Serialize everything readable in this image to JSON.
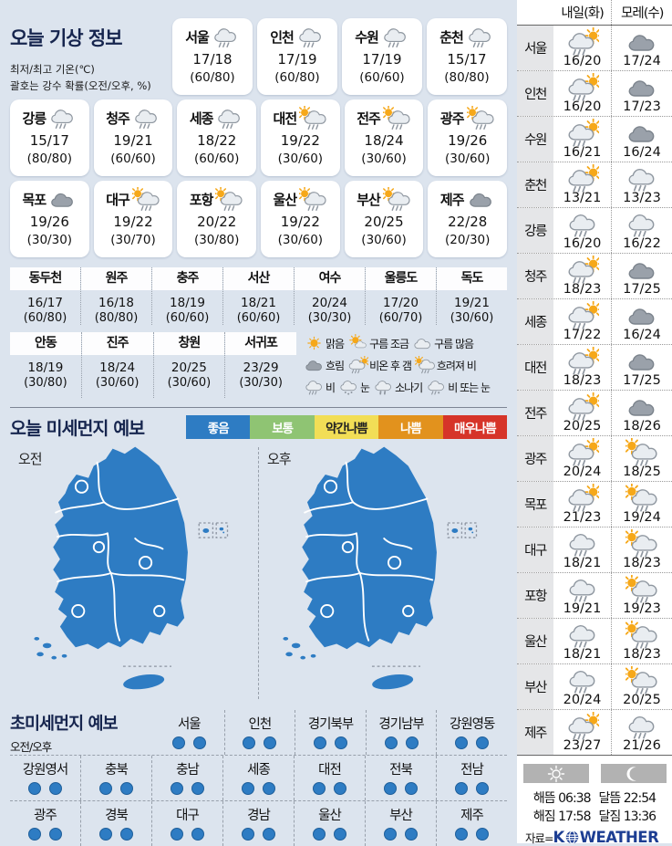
{
  "today": {
    "title": "오늘 기상 정보",
    "subtitle1": "최저/최고 기온(℃)",
    "subtitle2": "괄호는 강수 확률(오전/오후, %)",
    "cards_row1": [
      {
        "name": "서울",
        "icon": "rain",
        "temp": "17/18",
        "prob": "(60/80)"
      },
      {
        "name": "인천",
        "icon": "rain",
        "temp": "17/19",
        "prob": "(60/80)"
      },
      {
        "name": "수원",
        "icon": "rain",
        "temp": "17/19",
        "prob": "(60/60)"
      },
      {
        "name": "춘천",
        "icon": "rain",
        "temp": "15/17",
        "prob": "(80/80)"
      }
    ],
    "cards_row2": [
      {
        "name": "강릉",
        "icon": "rain",
        "temp": "15/17",
        "prob": "(80/80)"
      },
      {
        "name": "청주",
        "icon": "rain",
        "temp": "19/21",
        "prob": "(60/60)"
      },
      {
        "name": "세종",
        "icon": "rain",
        "temp": "18/22",
        "prob": "(60/60)"
      },
      {
        "name": "대전",
        "icon": "sun-rain",
        "temp": "19/22",
        "prob": "(30/60)"
      },
      {
        "name": "전주",
        "icon": "sun-rain",
        "temp": "18/24",
        "prob": "(30/60)"
      },
      {
        "name": "광주",
        "icon": "sun-rain",
        "temp": "19/26",
        "prob": "(30/60)"
      }
    ],
    "cards_row3": [
      {
        "name": "목포",
        "icon": "cloud-dark",
        "temp": "19/26",
        "prob": "(30/30)"
      },
      {
        "name": "대구",
        "icon": "sun-rain",
        "temp": "19/22",
        "prob": "(30/70)"
      },
      {
        "name": "포항",
        "icon": "sun-rain",
        "temp": "20/22",
        "prob": "(30/80)"
      },
      {
        "name": "울산",
        "icon": "sun-rain",
        "temp": "19/22",
        "prob": "(30/60)"
      },
      {
        "name": "부산",
        "icon": "sun-rain",
        "temp": "20/25",
        "prob": "(30/60)"
      },
      {
        "name": "제주",
        "icon": "cloud-dark",
        "temp": "22/28",
        "prob": "(20/30)"
      }
    ],
    "table_row1": [
      {
        "name": "동두천",
        "temp": "16/17",
        "prob": "(60/80)"
      },
      {
        "name": "원주",
        "temp": "16/18",
        "prob": "(80/80)"
      },
      {
        "name": "충주",
        "temp": "18/19",
        "prob": "(60/60)"
      },
      {
        "name": "서산",
        "temp": "18/21",
        "prob": "(60/60)"
      },
      {
        "name": "여수",
        "temp": "20/24",
        "prob": "(30/30)"
      },
      {
        "name": "울릉도",
        "temp": "17/20",
        "prob": "(60/70)"
      },
      {
        "name": "독도",
        "temp": "19/21",
        "prob": "(30/60)"
      }
    ],
    "table_row2": [
      {
        "name": "안동",
        "temp": "18/19",
        "prob": "(30/80)"
      },
      {
        "name": "진주",
        "temp": "18/24",
        "prob": "(30/60)"
      },
      {
        "name": "창원",
        "temp": "20/25",
        "prob": "(30/60)"
      },
      {
        "name": "서귀포",
        "temp": "23/29",
        "prob": "(30/30)"
      }
    ],
    "legend_rows": [
      [
        {
          "icon": "sun",
          "label": "맑음"
        },
        {
          "icon": "part-sun",
          "label": "구름 조금"
        },
        {
          "icon": "cloud",
          "label": "구름 많음"
        }
      ],
      [
        {
          "icon": "cloud-dark",
          "label": "흐림"
        },
        {
          "icon": "rain-sun",
          "label": "비온 후 갬"
        },
        {
          "icon": "sun-rain",
          "label": "흐려져 비"
        }
      ],
      [
        {
          "icon": "rain",
          "label": "비"
        },
        {
          "icon": "snow",
          "label": "눈"
        },
        {
          "icon": "shower",
          "label": "소나기"
        },
        {
          "icon": "rain-snow",
          "label": "비 또는 눈"
        }
      ]
    ]
  },
  "dust": {
    "title": "오늘 미세먼지 예보",
    "levels": [
      {
        "label": "좋음",
        "color": "#2e7cc3",
        "text": "#ffffff"
      },
      {
        "label": "보통",
        "color": "#8fc473",
        "text": "#ffffff"
      },
      {
        "label": "약간나쁨",
        "color": "#f2de56",
        "text": "#222222"
      },
      {
        "label": "나쁨",
        "color": "#e2921d",
        "text": "#ffffff"
      },
      {
        "label": "매우나쁨",
        "color": "#d63429",
        "text": "#ffffff"
      }
    ],
    "maps": [
      {
        "label": "오전"
      },
      {
        "label": "오후"
      }
    ],
    "map_color": "#2e7cc3"
  },
  "ultrafine": {
    "title": "초미세먼지 예보",
    "sublabel": "오전/오후",
    "row1": [
      "서울",
      "인천",
      "경기북부",
      "경기남부",
      "강원영동"
    ],
    "row2": [
      "강원영서",
      "충북",
      "충남",
      "세종",
      "대전",
      "전북",
      "전남"
    ],
    "row3": [
      "광주",
      "경북",
      "대구",
      "경남",
      "울산",
      "부산",
      "제주"
    ],
    "dot_color": "#2e7cc3",
    "dots_per_region": 2
  },
  "forecast": {
    "col1": "내일(화)",
    "col2": "모레(수)",
    "rows": [
      {
        "name": "서울",
        "d1": {
          "icon": "rain-sun",
          "temp": "16/20"
        },
        "d2": {
          "icon": "cloud-dark",
          "temp": "17/24"
        }
      },
      {
        "name": "인천",
        "d1": {
          "icon": "rain-sun",
          "temp": "16/20"
        },
        "d2": {
          "icon": "cloud-dark",
          "temp": "17/23"
        }
      },
      {
        "name": "수원",
        "d1": {
          "icon": "rain-sun",
          "temp": "16/21"
        },
        "d2": {
          "icon": "cloud-dark",
          "temp": "16/24"
        }
      },
      {
        "name": "춘천",
        "d1": {
          "icon": "rain-sun",
          "temp": "13/21"
        },
        "d2": {
          "icon": "rain",
          "temp": "13/23"
        }
      },
      {
        "name": "강릉",
        "d1": {
          "icon": "rain",
          "temp": "16/20"
        },
        "d2": {
          "icon": "rain",
          "temp": "16/22"
        }
      },
      {
        "name": "청주",
        "d1": {
          "icon": "rain-sun",
          "temp": "18/23"
        },
        "d2": {
          "icon": "cloud-dark",
          "temp": "17/25"
        }
      },
      {
        "name": "세종",
        "d1": {
          "icon": "rain-sun",
          "temp": "17/22"
        },
        "d2": {
          "icon": "cloud-dark",
          "temp": "16/24"
        }
      },
      {
        "name": "대전",
        "d1": {
          "icon": "rain-sun",
          "temp": "18/23"
        },
        "d2": {
          "icon": "cloud-dark",
          "temp": "17/25"
        }
      },
      {
        "name": "전주",
        "d1": {
          "icon": "rain-sun",
          "temp": "20/25"
        },
        "d2": {
          "icon": "cloud-dark",
          "temp": "18/26"
        }
      },
      {
        "name": "광주",
        "d1": {
          "icon": "rain-sun",
          "temp": "20/24"
        },
        "d2": {
          "icon": "sun-rain",
          "temp": "18/25"
        }
      },
      {
        "name": "목포",
        "d1": {
          "icon": "rain-sun",
          "temp": "21/23"
        },
        "d2": {
          "icon": "sun-rain",
          "temp": "19/24"
        }
      },
      {
        "name": "대구",
        "d1": {
          "icon": "rain",
          "temp": "18/21"
        },
        "d2": {
          "icon": "sun-rain",
          "temp": "18/23"
        }
      },
      {
        "name": "포항",
        "d1": {
          "icon": "rain",
          "temp": "19/21"
        },
        "d2": {
          "icon": "sun-rain",
          "temp": "19/23"
        }
      },
      {
        "name": "울산",
        "d1": {
          "icon": "rain",
          "temp": "18/21"
        },
        "d2": {
          "icon": "sun-rain",
          "temp": "18/23"
        }
      },
      {
        "name": "부산",
        "d1": {
          "icon": "rain",
          "temp": "20/24"
        },
        "d2": {
          "icon": "sun-rain",
          "temp": "20/25"
        }
      },
      {
        "name": "제주",
        "d1": {
          "icon": "rain-sun",
          "temp": "23/27"
        },
        "d2": {
          "icon": "rain",
          "temp": "21/26"
        }
      }
    ]
  },
  "astro": {
    "sunrise_label": "해뜸",
    "sunrise_time": "06:38",
    "sunset_label": "해짐",
    "sunset_time": "17:58",
    "moonrise_label": "달뜸",
    "moonrise_time": "22:54",
    "moonset_label": "달짐",
    "moonset_time": "13:36",
    "source_label": "자료=",
    "logo_1": "K",
    "logo_2": "WEATHER"
  }
}
